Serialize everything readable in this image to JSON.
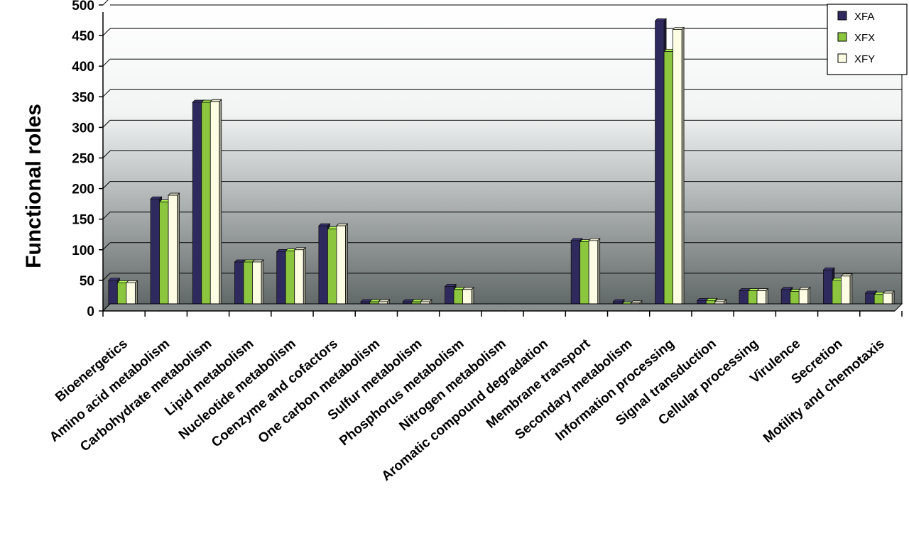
{
  "chart_data": {
    "type": "bar",
    "title": "",
    "xlabel": "",
    "ylabel": "Functional roles",
    "ylim": [
      0,
      500
    ],
    "yticks": [
      0,
      50,
      100,
      150,
      200,
      250,
      300,
      350,
      400,
      450,
      500
    ],
    "grid": true,
    "legend": "top-right",
    "categories": [
      "Bioenergetics",
      "Amino acid metabolism",
      "Carbohydrate metabolism",
      "Lipid metabolism",
      "Nucleotide metabolism",
      "Coenzyme and cofactors",
      "One carbon metabolism",
      "Sulfur metabolism",
      "Phosphorus metabolism",
      "Nitrogen metabolism",
      "Aromatic compound degradation",
      "Membrane transport",
      "Secondary metabolism",
      "Information processing",
      "Signal transduction",
      "Cellular processing",
      "Virulence",
      "Secretion",
      "Motility and chemotaxis"
    ],
    "series": [
      {
        "name": "XFA",
        "color": "#2e2a5e",
        "values": [
          50,
          183,
          341,
          80,
          97,
          139,
          15,
          15,
          40,
          6,
          8,
          115,
          15,
          474,
          17,
          33,
          35,
          67,
          29
        ]
      },
      {
        "name": "XFX",
        "color": "#8cc63f",
        "values": [
          46,
          178,
          341,
          80,
          98,
          134,
          15,
          15,
          35,
          5,
          6,
          113,
          11,
          424,
          17,
          33,
          32,
          50,
          27
        ]
      },
      {
        "name": "XFY",
        "color": "#fdfde3",
        "values": [
          46,
          189,
          342,
          80,
          100,
          139,
          15,
          15,
          35,
          6,
          8,
          115,
          13,
          460,
          15,
          33,
          35,
          57,
          29
        ]
      }
    ]
  }
}
